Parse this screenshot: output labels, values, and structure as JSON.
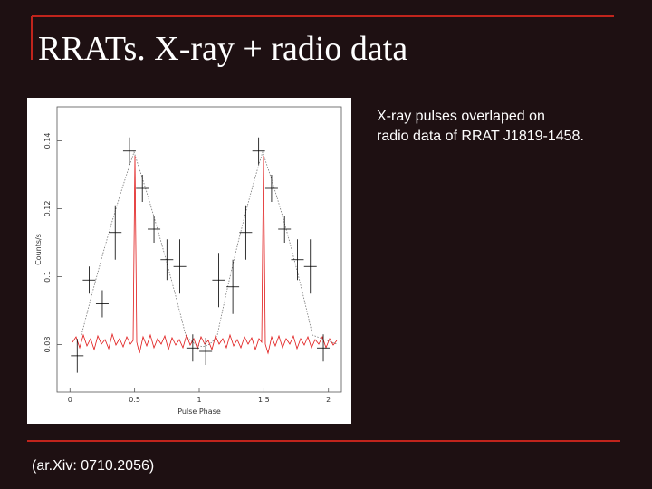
{
  "slide": {
    "title": "RRATs. X-ray + radio data",
    "caption": [
      "X-ray pulses overlaped on",
      "radio data of RRAT J1819-1458."
    ],
    "citation": "(ar.Xiv: 0710.2056)"
  },
  "chart_data": {
    "type": "errorbar",
    "xlabel": "Pulse Phase",
    "ylabel": "Counts/s",
    "xlim": [
      -0.1,
      2.1
    ],
    "ylim": [
      0.066,
      0.15
    ],
    "xticks": [
      0,
      0.5,
      1,
      1.5,
      2
    ],
    "yticks": [
      0.08,
      0.1,
      0.12,
      0.14
    ],
    "series": [
      {
        "name": "X-ray",
        "color": "#000000",
        "x": [
          0.056,
          0.148,
          0.25,
          0.35,
          0.46,
          0.56,
          0.65,
          0.75,
          0.85,
          0.95,
          1.05,
          1.15,
          1.26,
          1.36,
          1.46,
          1.56,
          1.66,
          1.76,
          1.86,
          1.96
        ],
        "values": [
          0.0767,
          0.099,
          0.092,
          0.113,
          0.137,
          0.126,
          0.114,
          0.105,
          0.103,
          0.079,
          0.078,
          0.099,
          0.097,
          0.113,
          0.137,
          0.126,
          0.114,
          0.105,
          0.103,
          0.079
        ],
        "errors": [
          0.005,
          0.004,
          0.004,
          0.008,
          0.004,
          0.004,
          0.004,
          0.006,
          0.008,
          0.004,
          0.004,
          0.008,
          0.008,
          0.008,
          0.004,
          0.004,
          0.004,
          0.006,
          0.008,
          0.004
        ]
      }
    ]
  }
}
